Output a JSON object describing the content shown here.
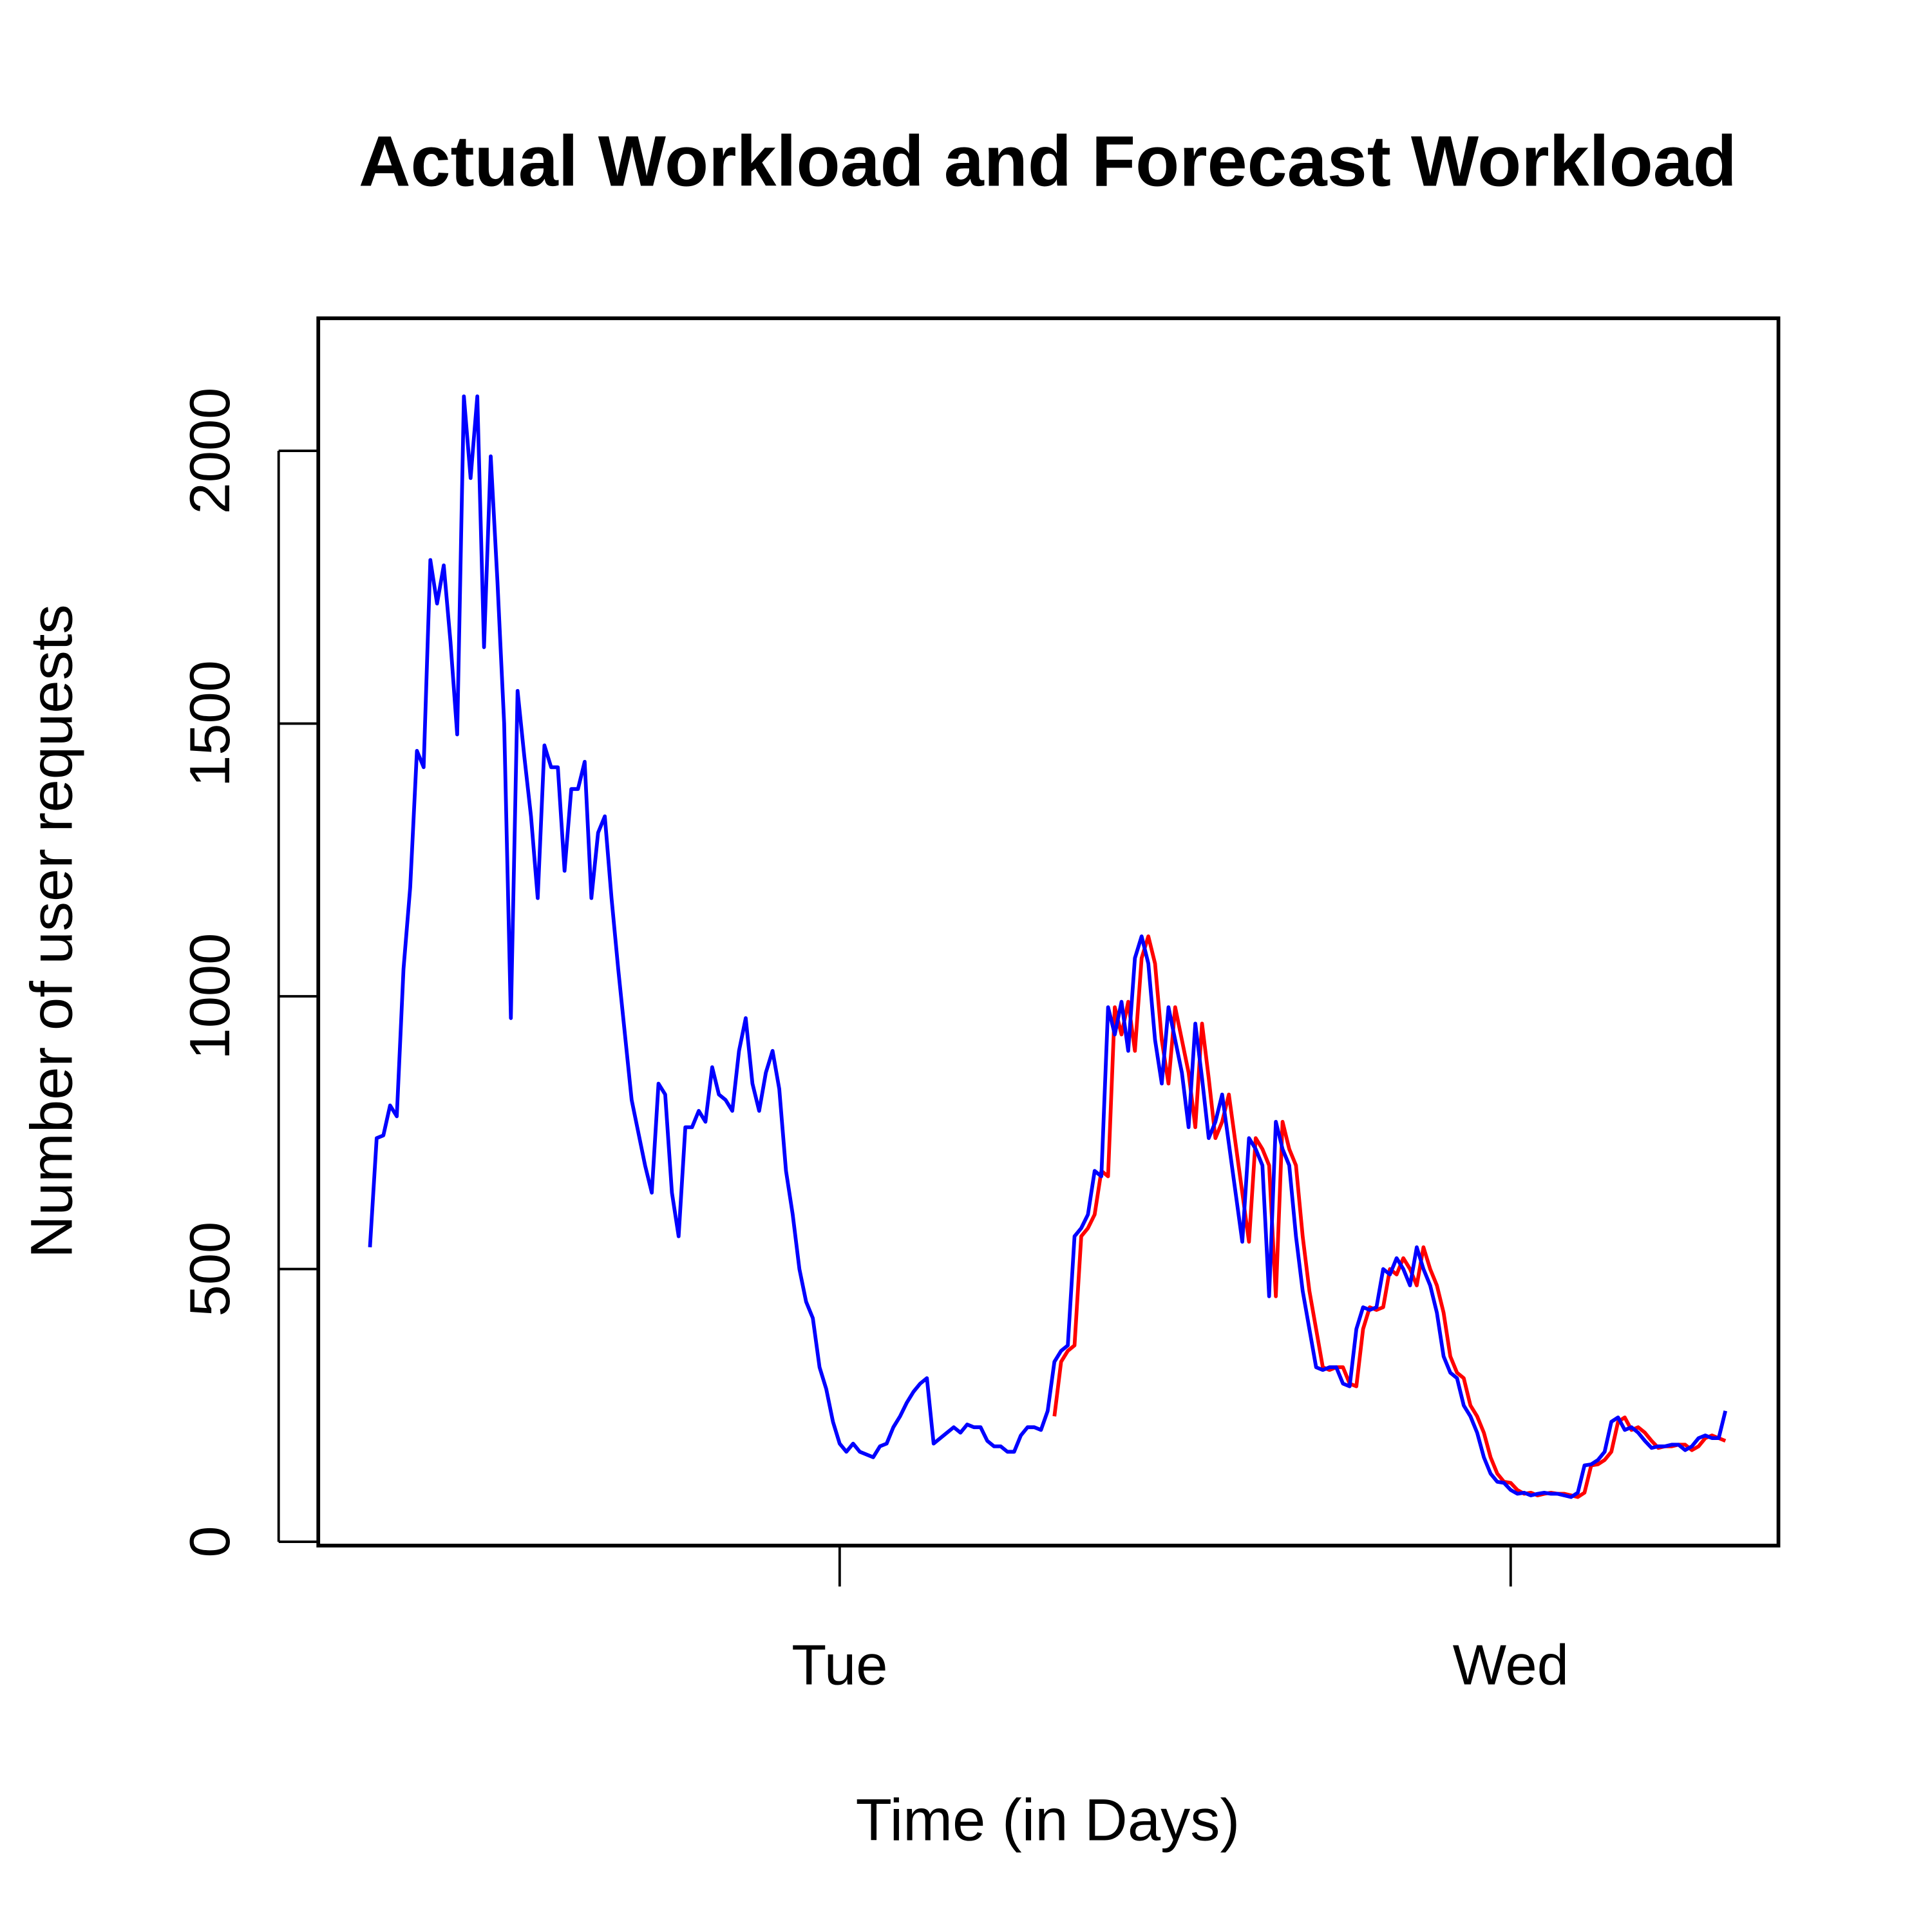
{
  "chart_data": {
    "type": "line",
    "title": "Actual Workload and Forecast Workload",
    "x_label": "Time (in Days)",
    "y_label": "Number of user requests",
    "xlim": [
      0.223,
      2.399
    ],
    "ylim": [
      -7,
      2243
    ],
    "xticks": [
      {
        "value": 1,
        "label": "Tue"
      },
      {
        "value": 2,
        "label": "Wed"
      }
    ],
    "yticks": [
      0,
      500,
      1000,
      1500,
      2000
    ],
    "grid": false,
    "x": [
      0.3,
      0.31,
      0.32,
      0.33,
      0.34,
      0.35,
      0.36,
      0.37,
      0.38,
      0.39,
      0.4,
      0.41,
      0.42,
      0.43,
      0.44,
      0.45,
      0.46,
      0.47,
      0.48,
      0.49,
      0.5,
      0.51,
      0.52,
      0.53,
      0.54,
      0.55,
      0.56,
      0.57,
      0.58,
      0.59,
      0.6,
      0.61,
      0.62,
      0.63,
      0.64,
      0.65,
      0.66,
      0.67,
      0.68,
      0.69,
      0.7,
      0.71,
      0.72,
      0.73,
      0.74,
      0.75,
      0.76,
      0.77,
      0.78,
      0.79,
      0.8,
      0.81,
      0.82,
      0.83,
      0.84,
      0.85,
      0.86,
      0.87,
      0.88,
      0.89,
      0.9,
      0.91,
      0.92,
      0.93,
      0.94,
      0.95,
      0.96,
      0.97,
      0.98,
      0.99,
      1.0,
      1.01,
      1.02,
      1.03,
      1.04,
      1.05,
      1.06,
      1.07,
      1.08,
      1.09,
      1.1,
      1.11,
      1.12,
      1.13,
      1.14,
      1.15,
      1.16,
      1.17,
      1.18,
      1.19,
      1.2,
      1.21,
      1.22,
      1.23,
      1.24,
      1.25,
      1.26,
      1.27,
      1.28,
      1.29,
      1.3,
      1.31,
      1.32,
      1.33,
      1.34,
      1.35,
      1.36,
      1.37,
      1.38,
      1.39,
      1.4,
      1.41,
      1.42,
      1.43,
      1.44,
      1.45,
      1.46,
      1.47,
      1.48,
      1.49,
      1.5,
      1.51,
      1.52,
      1.53,
      1.54,
      1.55,
      1.56,
      1.57,
      1.58,
      1.59,
      1.6,
      1.61,
      1.62,
      1.63,
      1.64,
      1.65,
      1.66,
      1.67,
      1.68,
      1.69,
      1.7,
      1.71,
      1.72,
      1.73,
      1.74,
      1.75,
      1.76,
      1.77,
      1.78,
      1.79,
      1.8,
      1.81,
      1.82,
      1.83,
      1.84,
      1.85,
      1.86,
      1.87,
      1.88,
      1.89,
      1.9,
      1.91,
      1.92,
      1.93,
      1.94,
      1.95,
      1.96,
      1.97,
      1.98,
      1.99,
      2.0,
      2.01,
      2.02,
      2.03,
      2.04,
      2.05,
      2.06,
      2.07,
      2.08,
      2.09,
      2.1,
      2.11,
      2.12,
      2.13,
      2.14,
      2.15,
      2.16,
      2.17,
      2.18,
      2.19,
      2.2,
      2.21,
      2.22,
      2.23,
      2.24,
      2.25,
      2.26,
      2.27,
      2.28,
      2.29,
      2.3,
      2.31,
      2.32
    ],
    "series": [
      {
        "color": "#0000ff",
        "values": [
          540,
          740,
          745,
          800,
          780,
          1050,
          1200,
          1450,
          1420,
          1800,
          1720,
          1790,
          1650,
          1480,
          2100,
          1950,
          2100,
          1640,
          1990,
          1760,
          1500,
          960,
          1560,
          1440,
          1330,
          1180,
          1460,
          1420,
          1420,
          1230,
          1380,
          1380,
          1430,
          1180,
          1300,
          1330,
          1180,
          1050,
          930,
          810,
          750,
          690,
          640,
          840,
          820,
          640,
          560,
          760,
          760,
          790,
          770,
          870,
          820,
          810,
          790,
          900,
          960,
          840,
          790,
          860,
          900,
          830,
          680,
          600,
          500,
          440,
          410,
          320,
          280,
          220,
          180,
          165,
          180,
          165,
          160,
          155,
          175,
          180,
          210,
          230,
          255,
          275,
          290,
          300,
          180,
          190,
          200,
          210,
          200,
          215,
          210,
          210,
          185,
          175,
          175,
          165,
          165,
          195,
          210,
          210,
          205,
          240,
          330,
          350,
          360,
          560,
          575,
          600,
          680,
          670,
          980,
          930,
          990,
          900,
          1070,
          1110,
          1060,
          920,
          840,
          980,
          920,
          860,
          760,
          950,
          850,
          740,
          770,
          820,
          730,
          640,
          550,
          740,
          720,
          690,
          450,
          770,
          720,
          690,
          560,
          460,
          390,
          320,
          315,
          320,
          320,
          290,
          285,
          390,
          430,
          425,
          430,
          500,
          490,
          520,
          500,
          470,
          540,
          500,
          470,
          420,
          340,
          310,
          300,
          250,
          230,
          200,
          155,
          125,
          110,
          108,
          95,
          88,
          90,
          85,
          88,
          90,
          88,
          88,
          85,
          82,
          90,
          140,
          142,
          150,
          165,
          220,
          228,
          205,
          210,
          200,
          185,
          172,
          175,
          175,
          178,
          178,
          168,
          175,
          190,
          195,
          190,
          190,
          240
        ]
      },
      {
        "color": "#ff0000",
        "values": [
          null,
          null,
          null,
          null,
          null,
          null,
          null,
          null,
          null,
          null,
          null,
          null,
          null,
          null,
          null,
          null,
          null,
          null,
          null,
          null,
          null,
          null,
          null,
          null,
          null,
          null,
          null,
          null,
          null,
          null,
          null,
          null,
          null,
          null,
          null,
          null,
          null,
          null,
          null,
          null,
          null,
          null,
          null,
          null,
          null,
          null,
          null,
          null,
          null,
          null,
          null,
          null,
          null,
          null,
          null,
          null,
          null,
          null,
          null,
          null,
          null,
          null,
          null,
          null,
          null,
          null,
          null,
          null,
          null,
          null,
          null,
          null,
          null,
          null,
          null,
          null,
          null,
          null,
          null,
          null,
          null,
          null,
          null,
          null,
          null,
          null,
          null,
          null,
          null,
          null,
          null,
          null,
          null,
          null,
          null,
          null,
          null,
          null,
          null,
          null,
          null,
          null,
          230,
          330,
          350,
          360,
          560,
          575,
          600,
          680,
          670,
          980,
          930,
          990,
          900,
          1070,
          1110,
          1060,
          920,
          840,
          980,
          920,
          860,
          760,
          950,
          850,
          740,
          770,
          820,
          730,
          640,
          550,
          740,
          720,
          690,
          450,
          770,
          720,
          690,
          560,
          460,
          390,
          320,
          315,
          320,
          320,
          290,
          285,
          390,
          430,
          425,
          430,
          500,
          490,
          520,
          500,
          470,
          540,
          500,
          470,
          420,
          340,
          310,
          300,
          250,
          230,
          200,
          155,
          125,
          110,
          108,
          95,
          88,
          90,
          85,
          88,
          90,
          88,
          88,
          85,
          82,
          90,
          140,
          142,
          150,
          165,
          220,
          228,
          205,
          210,
          200,
          185,
          172,
          175,
          175,
          178,
          178,
          168,
          175,
          190,
          195,
          190,
          185
        ]
      }
    ]
  }
}
